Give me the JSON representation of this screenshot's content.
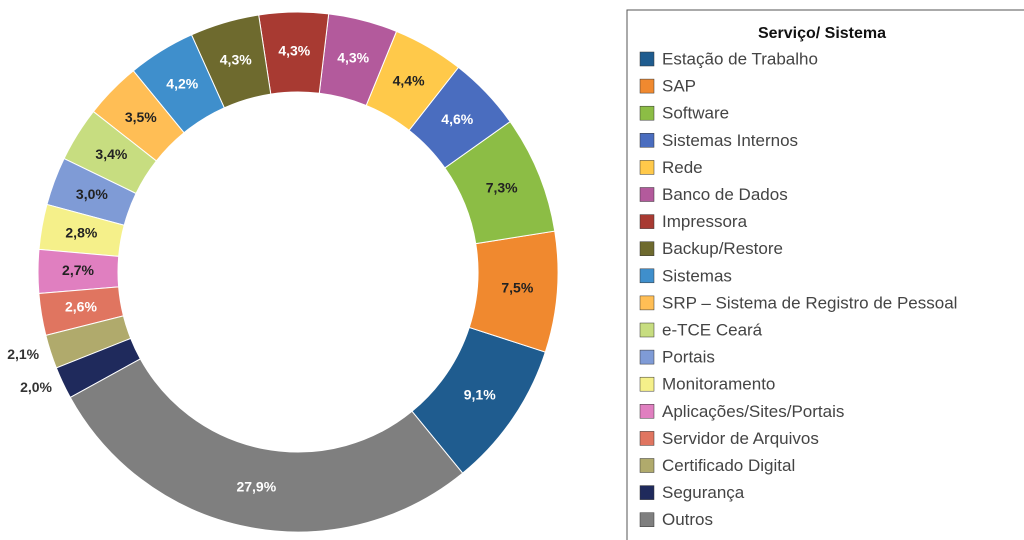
{
  "chart_data": {
    "type": "donut",
    "legend_title": "Serviço/ Sistema",
    "categories": [
      "Estação de Trabalho",
      "SAP",
      "Software",
      "Sistemas Internos",
      "Rede",
      "Banco de Dados",
      "Impressora",
      "Backup/Restore",
      "Sistemas",
      "SRP – Sistema de Registro de Pessoal",
      "e-TCE Ceará",
      "Portais",
      "Monitoramento",
      "Aplicações/Sites/Portais",
      "Servidor de Arquivos",
      "Certificado Digital",
      "Segurança",
      "Outros"
    ],
    "values": [
      9.1,
      7.5,
      7.3,
      4.6,
      4.4,
      4.3,
      4.3,
      4.3,
      4.2,
      3.5,
      3.4,
      3.0,
      2.8,
      2.7,
      2.6,
      2.1,
      2.0,
      27.9
    ],
    "value_labels": [
      "9,1%",
      "7,5%",
      "7,3%",
      "4,6%",
      "4,4%",
      "4,3%",
      "4,3%",
      "4,3%",
      "4,2%",
      "3,5%",
      "3,4%",
      "3,0%",
      "2,8%",
      "2,7%",
      "2,6%",
      "2,1%",
      "2,0%",
      "27,9%"
    ],
    "colors": [
      "#1f5c8f",
      "#f0892f",
      "#8cbd45",
      "#4a6dbf",
      "#ffc94a",
      "#b35a9c",
      "#a83a32",
      "#6e6a2e",
      "#3f8fcc",
      "#ffbe55",
      "#c7dd80",
      "#7f9bd6",
      "#f5f08a",
      "#e07fc0",
      "#e07560",
      "#b0aa6c",
      "#1f2a5c",
      "#7f7f7f"
    ],
    "legend": "right"
  }
}
